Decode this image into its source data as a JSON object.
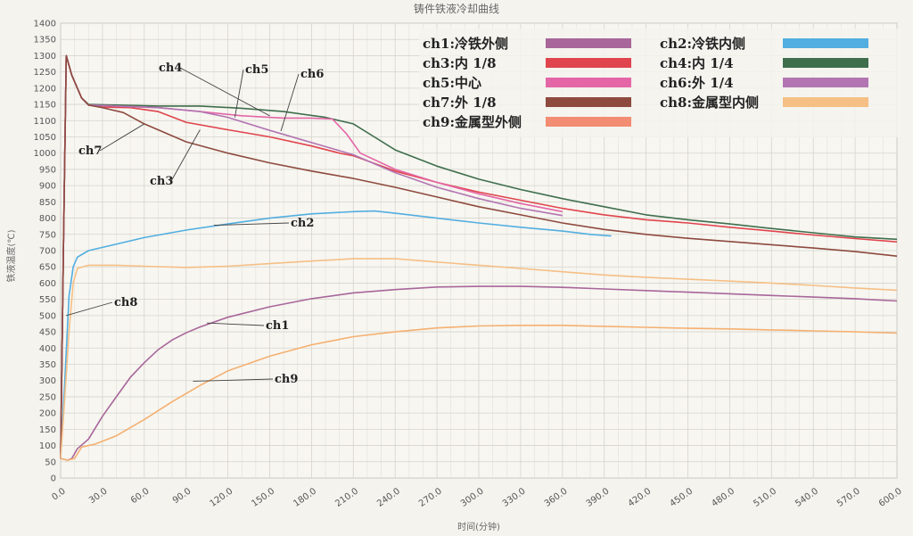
{
  "chart_data": {
    "type": "line",
    "title": "铸件铁液冷却曲线",
    "xlabel": "时间(分钟)",
    "ylabel": "铁液温度(℃)",
    "xlim": [
      0,
      600
    ],
    "ylim": [
      0,
      1400
    ],
    "xticks": [
      "0.0",
      "30.0",
      "60.0",
      "90.0",
      "120.0",
      "150.0",
      "180.0",
      "210.0",
      "240.0",
      "270.0",
      "300.0",
      "330.0",
      "360.0",
      "390.0",
      "420.0",
      "450.0",
      "480.0",
      "510.0",
      "540.0",
      "570.0",
      "600.0"
    ],
    "yticks": [
      0,
      50,
      100,
      150,
      200,
      250,
      300,
      350,
      400,
      450,
      500,
      550,
      600,
      650,
      700,
      750,
      800,
      850,
      900,
      950,
      1000,
      1050,
      1100,
      1150,
      1200,
      1250,
      1300,
      1350,
      1400
    ],
    "grid": true,
    "legend_position": "top-right",
    "legend": [
      {
        "label": "ch1:冷铁外侧",
        "color": "#a8669a"
      },
      {
        "label": "ch2:冷铁内侧",
        "color": "#52aee0"
      },
      {
        "label": "ch3:内 1/8",
        "color": "#e0444c"
      },
      {
        "label": "ch4:内 1/4",
        "color": "#3e6e4c"
      },
      {
        "label": "ch5:中心",
        "color": "#e466a6"
      },
      {
        "label": "ch6:外 1/4",
        "color": "#b275b2"
      },
      {
        "label": "ch7:外 1/8",
        "color": "#8e4a3e"
      },
      {
        "label": "ch8:金属型内侧",
        "color": "#f5bf85"
      },
      {
        "label": "ch9:金属型外侧",
        "color": "#f28c72"
      }
    ],
    "series": [
      {
        "name": "ch1",
        "color": "#a8669a",
        "points": [
          [
            0,
            60
          ],
          [
            5,
            55
          ],
          [
            8,
            60
          ],
          [
            12,
            90
          ],
          [
            20,
            120
          ],
          [
            30,
            190
          ],
          [
            40,
            250
          ],
          [
            50,
            310
          ],
          [
            60,
            355
          ],
          [
            70,
            395
          ],
          [
            80,
            425
          ],
          [
            90,
            447
          ],
          [
            100,
            465
          ],
          [
            120,
            495
          ],
          [
            150,
            527
          ],
          [
            180,
            552
          ],
          [
            210,
            570
          ],
          [
            240,
            580
          ],
          [
            270,
            588
          ],
          [
            300,
            590
          ],
          [
            330,
            590
          ],
          [
            360,
            587
          ],
          [
            390,
            582
          ],
          [
            420,
            577
          ],
          [
            450,
            572
          ],
          [
            480,
            567
          ],
          [
            510,
            562
          ],
          [
            540,
            557
          ],
          [
            570,
            552
          ],
          [
            600,
            545
          ]
        ]
      },
      {
        "name": "ch2",
        "color": "#52aee0",
        "points": [
          [
            0,
            60
          ],
          [
            3,
            300
          ],
          [
            6,
            560
          ],
          [
            9,
            650
          ],
          [
            12,
            680
          ],
          [
            20,
            700
          ],
          [
            30,
            710
          ],
          [
            60,
            740
          ],
          [
            90,
            763
          ],
          [
            120,
            782
          ],
          [
            150,
            800
          ],
          [
            180,
            813
          ],
          [
            210,
            820
          ],
          [
            225,
            822
          ],
          [
            240,
            815
          ],
          [
            270,
            800
          ],
          [
            300,
            785
          ],
          [
            330,
            772
          ],
          [
            360,
            760
          ],
          [
            380,
            750
          ],
          [
            395,
            745
          ]
        ]
      },
      {
        "name": "ch3",
        "color": "#e0444c",
        "points": [
          [
            0,
            60
          ],
          [
            2,
            700
          ],
          [
            4,
            1300
          ],
          [
            8,
            1240
          ],
          [
            15,
            1170
          ],
          [
            20,
            1148
          ],
          [
            30,
            1142
          ],
          [
            50,
            1140
          ],
          [
            70,
            1128
          ],
          [
            90,
            1095
          ],
          [
            120,
            1072
          ],
          [
            150,
            1050
          ],
          [
            180,
            1022
          ],
          [
            200,
            1000
          ],
          [
            210,
            992
          ],
          [
            240,
            945
          ],
          [
            270,
            910
          ],
          [
            300,
            880
          ],
          [
            330,
            855
          ],
          [
            360,
            830
          ],
          [
            390,
            810
          ],
          [
            420,
            795
          ],
          [
            450,
            785
          ],
          [
            480,
            772
          ],
          [
            510,
            760
          ],
          [
            540,
            748
          ],
          [
            570,
            737
          ],
          [
            600,
            727
          ]
        ]
      },
      {
        "name": "ch4",
        "color": "#3e6e4c",
        "points": [
          [
            0,
            60
          ],
          [
            2,
            700
          ],
          [
            4,
            1300
          ],
          [
            8,
            1240
          ],
          [
            15,
            1170
          ],
          [
            20,
            1150
          ],
          [
            40,
            1148
          ],
          [
            70,
            1145
          ],
          [
            100,
            1145
          ],
          [
            130,
            1138
          ],
          [
            160,
            1128
          ],
          [
            190,
            1110
          ],
          [
            210,
            1090
          ],
          [
            225,
            1050
          ],
          [
            240,
            1010
          ],
          [
            270,
            960
          ],
          [
            300,
            920
          ],
          [
            330,
            888
          ],
          [
            360,
            860
          ],
          [
            390,
            835
          ],
          [
            420,
            810
          ],
          [
            450,
            795
          ],
          [
            480,
            782
          ],
          [
            510,
            768
          ],
          [
            540,
            755
          ],
          [
            570,
            742
          ],
          [
            600,
            735
          ]
        ]
      },
      {
        "name": "ch5",
        "color": "#e466a6",
        "points": [
          [
            0,
            60
          ],
          [
            2,
            700
          ],
          [
            4,
            1300
          ],
          [
            8,
            1240
          ],
          [
            15,
            1170
          ],
          [
            20,
            1148
          ],
          [
            40,
            1145
          ],
          [
            70,
            1140
          ],
          [
            100,
            1128
          ],
          [
            130,
            1115
          ],
          [
            160,
            1108
          ],
          [
            180,
            1108
          ],
          [
            195,
            1105
          ],
          [
            205,
            1060
          ],
          [
            215,
            1000
          ],
          [
            240,
            950
          ],
          [
            270,
            910
          ],
          [
            300,
            875
          ],
          [
            330,
            845
          ],
          [
            360,
            820
          ]
        ]
      },
      {
        "name": "ch6",
        "color": "#b275b2",
        "points": [
          [
            0,
            60
          ],
          [
            2,
            700
          ],
          [
            4,
            1300
          ],
          [
            8,
            1240
          ],
          [
            15,
            1170
          ],
          [
            20,
            1148
          ],
          [
            40,
            1145
          ],
          [
            70,
            1140
          ],
          [
            100,
            1128
          ],
          [
            120,
            1110
          ],
          [
            150,
            1070
          ],
          [
            170,
            1045
          ],
          [
            190,
            1020
          ],
          [
            210,
            995
          ],
          [
            240,
            940
          ],
          [
            270,
            895
          ],
          [
            300,
            860
          ],
          [
            330,
            830
          ],
          [
            360,
            808
          ]
        ]
      },
      {
        "name": "ch7",
        "color": "#8e4a3e",
        "points": [
          [
            0,
            60
          ],
          [
            2,
            700
          ],
          [
            4,
            1300
          ],
          [
            8,
            1240
          ],
          [
            15,
            1170
          ],
          [
            20,
            1148
          ],
          [
            30,
            1140
          ],
          [
            45,
            1125
          ],
          [
            60,
            1090
          ],
          [
            90,
            1035
          ],
          [
            120,
            1000
          ],
          [
            150,
            970
          ],
          [
            180,
            945
          ],
          [
            210,
            922
          ],
          [
            240,
            895
          ],
          [
            270,
            865
          ],
          [
            300,
            835
          ],
          [
            330,
            810
          ],
          [
            360,
            785
          ],
          [
            390,
            765
          ],
          [
            420,
            750
          ],
          [
            450,
            738
          ],
          [
            480,
            728
          ],
          [
            510,
            718
          ],
          [
            540,
            708
          ],
          [
            570,
            697
          ],
          [
            600,
            683
          ]
        ]
      },
      {
        "name": "ch8",
        "color": "#f5bf85",
        "points": [
          [
            0,
            60
          ],
          [
            3,
            250
          ],
          [
            6,
            450
          ],
          [
            9,
            600
          ],
          [
            12,
            645
          ],
          [
            20,
            655
          ],
          [
            40,
            655
          ],
          [
            60,
            652
          ],
          [
            90,
            648
          ],
          [
            120,
            652
          ],
          [
            150,
            660
          ],
          [
            180,
            668
          ],
          [
            210,
            675
          ],
          [
            240,
            675
          ],
          [
            270,
            665
          ],
          [
            300,
            655
          ],
          [
            330,
            645
          ],
          [
            360,
            635
          ],
          [
            390,
            625
          ],
          [
            420,
            618
          ],
          [
            450,
            612
          ],
          [
            480,
            606
          ],
          [
            510,
            600
          ],
          [
            540,
            593
          ],
          [
            570,
            585
          ],
          [
            600,
            578
          ]
        ]
      },
      {
        "name": "ch9",
        "color": "#f5b070",
        "points": [
          [
            0,
            60
          ],
          [
            5,
            55
          ],
          [
            10,
            60
          ],
          [
            15,
            95
          ],
          [
            25,
            105
          ],
          [
            40,
            130
          ],
          [
            60,
            180
          ],
          [
            80,
            235
          ],
          [
            100,
            285
          ],
          [
            120,
            330
          ],
          [
            150,
            375
          ],
          [
            180,
            410
          ],
          [
            210,
            435
          ],
          [
            240,
            450
          ],
          [
            270,
            462
          ],
          [
            300,
            468
          ],
          [
            330,
            470
          ],
          [
            360,
            470
          ],
          [
            390,
            467
          ],
          [
            420,
            464
          ],
          [
            450,
            461
          ],
          [
            480,
            459
          ],
          [
            510,
            456
          ],
          [
            540,
            453
          ],
          [
            570,
            450
          ],
          [
            600,
            446
          ]
        ]
      }
    ],
    "annotations": [
      {
        "label": "ch4",
        "target": [
          150,
          1115
        ]
      },
      {
        "label": "ch5",
        "target": [
          125,
          1110
        ]
      },
      {
        "label": "ch6",
        "target": [
          158,
          1068
        ]
      },
      {
        "label": "ch7",
        "target": [
          60,
          1090
        ]
      },
      {
        "label": "ch3",
        "target": [
          100,
          1072
        ]
      },
      {
        "label": "ch2",
        "target": [
          110,
          778
        ]
      },
      {
        "label": "ch8",
        "target": [
          4,
          500
        ]
      },
      {
        "label": "ch1",
        "target": [
          105,
          477
        ]
      },
      {
        "label": "ch9",
        "target": [
          95,
          298
        ]
      }
    ]
  }
}
